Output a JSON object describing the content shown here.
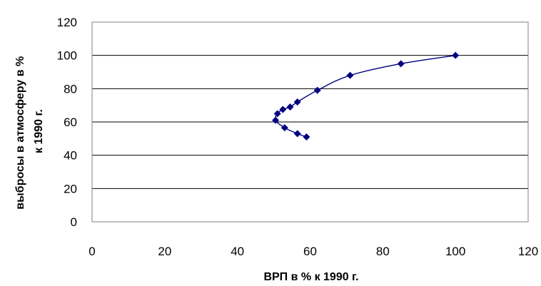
{
  "chart_data": {
    "type": "scatter",
    "title": "",
    "xlabel": "ВРП в % к 1990 г.",
    "ylabel_lines": [
      "выбросы в атмосферу в %",
      "к 1990 г."
    ],
    "xlim": [
      0,
      120
    ],
    "ylim": [
      0,
      120
    ],
    "x_ticks": [
      0,
      20,
      40,
      60,
      80,
      100,
      120
    ],
    "y_ticks": [
      0,
      20,
      40,
      60,
      80,
      100,
      120
    ],
    "grid": "horizontal",
    "legend": "none",
    "series": [
      {
        "color": "#000080",
        "marker": "diamond",
        "line": "smooth",
        "points": [
          {
            "x": 100,
            "y": 100
          },
          {
            "x": 85,
            "y": 95
          },
          {
            "x": 71,
            "y": 88
          },
          {
            "x": 62,
            "y": 79
          },
          {
            "x": 56.5,
            "y": 72
          },
          {
            "x": 54.5,
            "y": 69
          },
          {
            "x": 52.5,
            "y": 67.5
          },
          {
            "x": 51,
            "y": 65
          },
          {
            "x": 50.5,
            "y": 61
          },
          {
            "x": 53,
            "y": 56.5
          },
          {
            "x": 56.5,
            "y": 53
          },
          {
            "x": 59,
            "y": 51
          }
        ]
      }
    ]
  }
}
